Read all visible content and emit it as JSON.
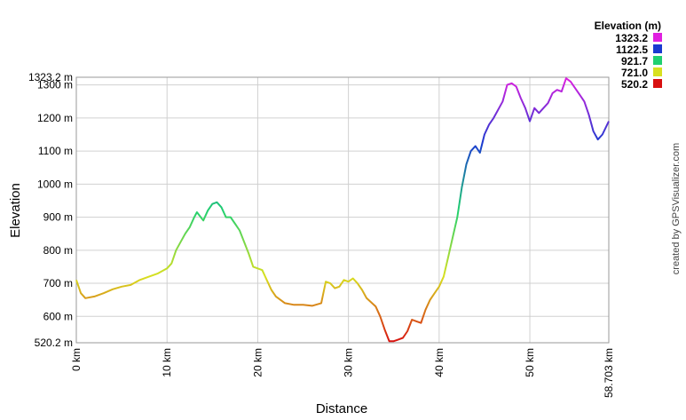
{
  "chart_data": {
    "type": "line",
    "x_label": "Distance",
    "y_label": "Elevation",
    "credit": "created by GPSVisualizer.com",
    "legend_title": "Elevation (m)",
    "color_scale": {
      "values": [
        1323.2,
        1122.5,
        921.7,
        721,
        520.2
      ],
      "value_labels": [
        "1323.2",
        "1122.5",
        "921.7",
        "721.0",
        "520.2"
      ],
      "colors": [
        "#e020e0",
        "#1a3ad0",
        "#20d070",
        "#d8e020",
        "#d81010"
      ]
    },
    "grid": true,
    "xlim": [
      0,
      58.703
    ],
    "ylim": [
      520.2,
      1323.2
    ],
    "xticks": [
      {
        "value": 0,
        "label": "0 km"
      },
      {
        "value": 10,
        "label": "10 km"
      },
      {
        "value": 20,
        "label": "20 km"
      },
      {
        "value": 30,
        "label": "30 km"
      },
      {
        "value": 40,
        "label": "40 km"
      },
      {
        "value": 50,
        "label": "50 km"
      },
      {
        "value": 58.703,
        "label": "58.703 km"
      }
    ],
    "yticks": [
      {
        "value": 520.2,
        "label": "520.2 m"
      },
      {
        "value": 600,
        "label": "600 m"
      },
      {
        "value": 700,
        "label": "700 m"
      },
      {
        "value": 800,
        "label": "800 m"
      },
      {
        "value": 900,
        "label": "900 m"
      },
      {
        "value": 1000,
        "label": "1000 m"
      },
      {
        "value": 1100,
        "label": "1100 m"
      },
      {
        "value": 1200,
        "label": "1200 m"
      },
      {
        "value": 1300,
        "label": "1300 m"
      },
      {
        "value": 1323.2,
        "label": "1323.2 m"
      }
    ],
    "x": [
      0,
      0.5,
      1,
      2,
      3,
      4,
      5,
      6,
      7,
      8,
      9,
      10,
      10.5,
      11,
      12,
      12.5,
      13,
      13.3,
      14,
      14.5,
      15,
      15.5,
      16,
      16.5,
      17,
      17.5,
      18,
      19,
      19.5,
      20,
      20.5,
      21,
      21.5,
      22,
      23,
      24,
      25,
      26,
      27,
      27.5,
      28,
      28.5,
      29,
      29.5,
      30,
      30.5,
      31,
      31.5,
      32,
      33,
      33.5,
      34,
      34.5,
      35,
      35.5,
      36,
      36.5,
      37,
      37.5,
      38,
      38.5,
      39,
      39.5,
      40,
      40.5,
      41,
      41.5,
      42,
      42.5,
      43,
      43.5,
      44,
      44.5,
      45,
      45.5,
      46,
      47,
      47.5,
      48,
      48.5,
      49,
      49.5,
      50,
      50.5,
      51,
      51.5,
      52,
      52.5,
      53,
      53.5,
      54,
      54.5,
      55,
      55.5,
      56,
      56.5,
      57,
      57.5,
      58,
      58.703
    ],
    "values": [
      710,
      670,
      655,
      660,
      670,
      682,
      690,
      695,
      710,
      720,
      730,
      745,
      760,
      800,
      850,
      870,
      900,
      915,
      890,
      920,
      940,
      945,
      930,
      900,
      900,
      880,
      860,
      790,
      750,
      745,
      740,
      710,
      680,
      660,
      640,
      635,
      635,
      632,
      640,
      705,
      700,
      685,
      690,
      710,
      705,
      715,
      700,
      680,
      655,
      630,
      600,
      560,
      525,
      525,
      530,
      535,
      555,
      590,
      585,
      580,
      620,
      650,
      670,
      690,
      720,
      780,
      840,
      900,
      990,
      1060,
      1100,
      1115,
      1095,
      1150,
      1180,
      1200,
      1250,
      1300,
      1305,
      1295,
      1260,
      1230,
      1190,
      1230,
      1215,
      1230,
      1245,
      1275,
      1285,
      1280,
      1320,
      1310,
      1290,
      1270,
      1250,
      1210,
      1160,
      1135,
      1150,
      1190
    ]
  }
}
